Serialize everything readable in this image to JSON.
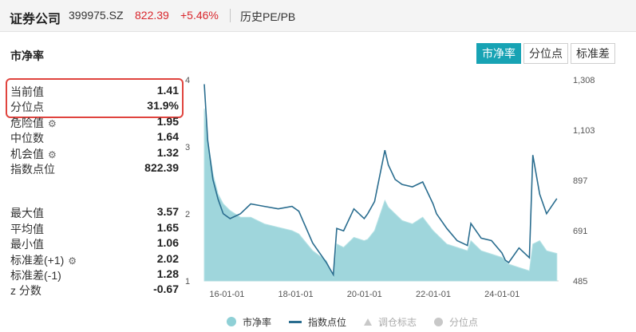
{
  "header": {
    "name": "证券公司",
    "code": "399975.SZ",
    "price": "822.39",
    "change": "+5.46%",
    "subtitle": "历史PE/PB"
  },
  "panel": {
    "title": "市净率",
    "tabs": [
      {
        "label": "市净率",
        "active": true
      },
      {
        "label": "分位点",
        "active": false
      },
      {
        "label": "标准差",
        "active": false
      }
    ]
  },
  "stats": {
    "current": {
      "label": "当前值",
      "value": "1.41"
    },
    "percentile": {
      "label": "分位点",
      "value": "31.9%"
    },
    "danger": {
      "label": "危险值",
      "value": "1.95"
    },
    "median": {
      "label": "中位数",
      "value": "1.64"
    },
    "opportunity": {
      "label": "机会值",
      "value": "1.32"
    },
    "index_level": {
      "label": "指数点位",
      "value": "822.39"
    },
    "max": {
      "label": "最大值",
      "value": "3.57"
    },
    "mean": {
      "label": "平均值",
      "value": "1.65"
    },
    "min": {
      "label": "最小值",
      "value": "1.06"
    },
    "std_plus": {
      "label": "标准差(+1)",
      "value": "2.02"
    },
    "std_minus": {
      "label": "标准差(-1)",
      "value": "1.28"
    },
    "zscore": {
      "label": "z 分数",
      "value": "-0.67"
    }
  },
  "legend": {
    "pb": "市净率",
    "index": "指数点位",
    "adjust": "调仓标志",
    "percentile": "分位点"
  },
  "colors": {
    "accent": "#17a3b4",
    "up": "#d9262c",
    "area": "#8fd0d6",
    "index_line": "#2a6d8f",
    "highlight": "#e0443e"
  },
  "chart_data": {
    "type": "line",
    "x_tick_labels": [
      "16-01-01",
      "18-01-01",
      "20-01-01",
      "22-01-01",
      "24-01-01"
    ],
    "left_axis": {
      "ticks": [
        "1",
        "2",
        "3",
        "4"
      ],
      "ylim": [
        1,
        4
      ]
    },
    "right_axis": {
      "ticks": [
        "485",
        "691",
        "897",
        "1,103",
        "1,308"
      ],
      "ylim": [
        485,
        1308
      ]
    },
    "series": [
      {
        "name": "市净率",
        "style": "area",
        "axis": "left",
        "x": [
          2015.25,
          2015.35,
          2015.5,
          2015.65,
          2015.8,
          2016.0,
          2016.3,
          2016.6,
          2017.0,
          2017.4,
          2017.8,
          2018.0,
          2018.4,
          2018.8,
          2019.0,
          2019.1,
          2019.3,
          2019.6,
          2019.9,
          2020.0,
          2020.2,
          2020.5,
          2020.6,
          2020.8,
          2021.0,
          2021.3,
          2021.6,
          2021.9,
          2022.0,
          2022.3,
          2022.6,
          2022.9,
          2023.0,
          2023.3,
          2023.6,
          2023.9,
          2024.0,
          2024.1,
          2024.4,
          2024.7,
          2024.8,
          2025.0,
          2025.2,
          2025.5
        ],
        "values": [
          3.57,
          3.1,
          2.6,
          2.3,
          2.15,
          2.05,
          1.95,
          1.95,
          1.85,
          1.8,
          1.75,
          1.7,
          1.45,
          1.3,
          1.06,
          1.55,
          1.5,
          1.65,
          1.6,
          1.62,
          1.75,
          2.2,
          2.1,
          2.0,
          1.9,
          1.85,
          1.95,
          1.75,
          1.7,
          1.55,
          1.5,
          1.45,
          1.6,
          1.45,
          1.4,
          1.35,
          1.3,
          1.25,
          1.2,
          1.15,
          1.55,
          1.6,
          1.45,
          1.41
        ]
      },
      {
        "name": "指数点位",
        "style": "line",
        "axis": "right",
        "x": [
          2015.25,
          2015.35,
          2015.5,
          2015.65,
          2015.8,
          2016.0,
          2016.3,
          2016.6,
          2017.0,
          2017.4,
          2017.8,
          2018.0,
          2018.4,
          2018.8,
          2019.0,
          2019.1,
          2019.3,
          2019.6,
          2019.9,
          2020.0,
          2020.2,
          2020.5,
          2020.6,
          2020.8,
          2021.0,
          2021.3,
          2021.6,
          2021.9,
          2022.0,
          2022.3,
          2022.6,
          2022.9,
          2023.0,
          2023.3,
          2023.6,
          2023.9,
          2024.0,
          2024.1,
          2024.4,
          2024.7,
          2024.8,
          2025.0,
          2025.2,
          2025.5
        ],
        "values": [
          1290,
          1060,
          900,
          820,
          760,
          740,
          760,
          800,
          790,
          780,
          790,
          770,
          640,
          560,
          510,
          700,
          690,
          780,
          740,
          760,
          810,
          1020,
          960,
          900,
          880,
          870,
          890,
          800,
          760,
          700,
          650,
          630,
          720,
          660,
          650,
          600,
          570,
          560,
          620,
          580,
          1000,
          840,
          760,
          822
        ]
      }
    ],
    "legend": [
      "市净率",
      "指数点位",
      "调仓标志",
      "分位点"
    ],
    "legend_placement": "bottom",
    "grid": false
  }
}
